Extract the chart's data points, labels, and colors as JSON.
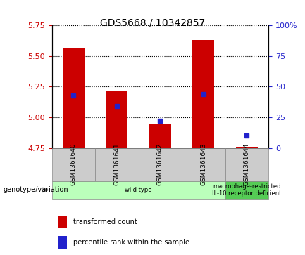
{
  "title": "GDS5668 / 10342857",
  "samples": [
    "GSM1361640",
    "GSM1361641",
    "GSM1361642",
    "GSM1361643",
    "GSM1361644"
  ],
  "transformed_counts": [
    5.57,
    5.22,
    4.95,
    5.63,
    4.76
  ],
  "percentile_ranks": [
    43,
    34,
    22,
    44,
    10
  ],
  "bar_bottom": 4.75,
  "left_ylim": [
    4.75,
    5.75
  ],
  "left_yticks": [
    4.75,
    5.0,
    5.25,
    5.5,
    5.75
  ],
  "right_ylim": [
    0,
    100
  ],
  "right_yticks": [
    0,
    25,
    50,
    75,
    100
  ],
  "right_yticklabels": [
    "0",
    "25",
    "50",
    "75",
    "100%"
  ],
  "bar_color": "#cc0000",
  "dot_color": "#2222cc",
  "plot_bg_color": "#ffffff",
  "sample_box_color": "#cccccc",
  "groups": [
    {
      "label": "wild type",
      "samples": [
        0,
        1,
        2,
        3
      ],
      "color": "#bbffbb"
    },
    {
      "label": "macrophage-restricted\nIL-10 receptor deficient",
      "samples": [
        4
      ],
      "color": "#55cc55"
    }
  ],
  "legend_items": [
    {
      "label": "transformed count",
      "color": "#cc0000"
    },
    {
      "label": "percentile rank within the sample",
      "color": "#2222cc"
    }
  ],
  "genotype_label": "genotype/variation",
  "left_ylabel_color": "#cc0000",
  "right_ylabel_color": "#2222cc",
  "bar_width": 0.5
}
